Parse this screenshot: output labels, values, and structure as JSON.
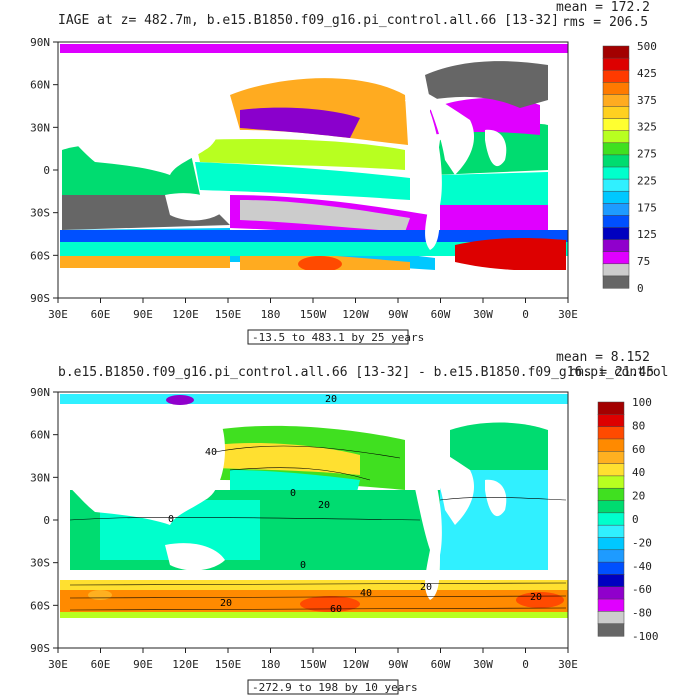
{
  "chart_data": [
    {
      "type": "heatmap",
      "title": "IAGE at z= 482.7m, b.e15.B1850.f09_g16.pi_control.all.66 [13-32]",
      "stats": {
        "mean": "mean = 172.2",
        "rms": "rms = 206.5"
      },
      "x_ticks": [
        "30E",
        "60E",
        "90E",
        "120E",
        "150E",
        "180",
        "150W",
        "120W",
        "90W",
        "60W",
        "30W",
        "0",
        "30E"
      ],
      "y_ticks": [
        "90N",
        "60N",
        "30N",
        "0",
        "30S",
        "60S",
        "90S"
      ],
      "range_note": "-13.5 to 483.1 by 25 years",
      "colorbar": {
        "labels": [
          "500",
          "425",
          "375",
          "325",
          "275",
          "225",
          "175",
          "125",
          "75",
          "0"
        ],
        "colors": [
          "#a30000",
          "#dd0000",
          "#ff3a00",
          "#ff7a00",
          "#ffab20",
          "#ffd020",
          "#ffff30",
          "#b8ff20",
          "#40e020",
          "#00dc70",
          "#00ffcc",
          "#30f0ff",
          "#00c8ff",
          "#1e9bff",
          "#0050ff",
          "#0000c0",
          "#9000cc",
          "#e000ff",
          "#cccccc",
          "#666666"
        ]
      }
    },
    {
      "type": "heatmap",
      "title": "b.e15.B1850.f09_g16.pi_control.all.66 [13-32] - b.e15.B1850.f09_g16.pi_control",
      "stats": {
        "mean": "mean = 8.152",
        "rms": "rms = 21.45"
      },
      "x_ticks": [
        "30E",
        "60E",
        "90E",
        "120E",
        "150E",
        "180",
        "150W",
        "120W",
        "90W",
        "60W",
        "30W",
        "0",
        "30E"
      ],
      "y_ticks": [
        "90N",
        "60N",
        "30N",
        "0",
        "30S",
        "60S",
        "90S"
      ],
      "range_note": "-272.9 to 198 by 10 years",
      "contour_labels": [
        "20",
        "40",
        "0",
        "20",
        "0",
        "0",
        "20",
        "20",
        "40",
        "60",
        "20"
      ],
      "colorbar": {
        "labels": [
          "100",
          "80",
          "60",
          "40",
          "20",
          "0",
          "-20",
          "-40",
          "-60",
          "-80",
          "-100"
        ],
        "colors": [
          "#a30000",
          "#dd0000",
          "#ff4a00",
          "#ff8a00",
          "#ffb020",
          "#ffe030",
          "#b8ff20",
          "#40e020",
          "#00dc70",
          "#00ffcc",
          "#30f0ff",
          "#00c8ff",
          "#1e9bff",
          "#0050ff",
          "#0000c0",
          "#9000cc",
          "#e000ff",
          "#cccccc",
          "#666666"
        ]
      }
    }
  ]
}
